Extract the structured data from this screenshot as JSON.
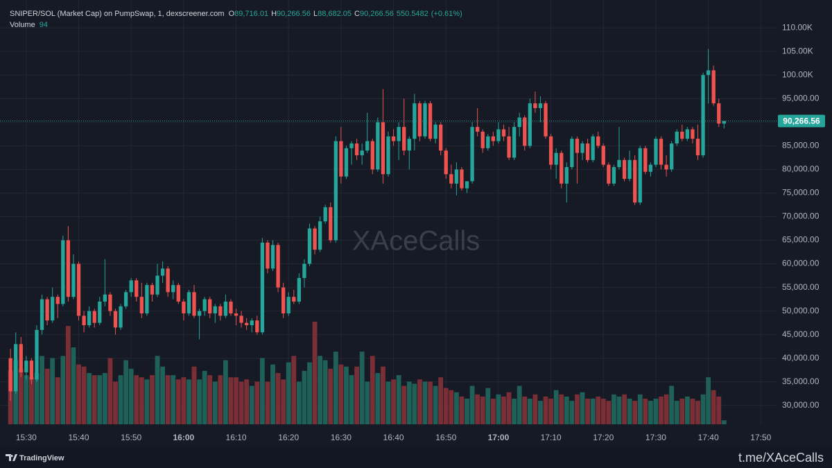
{
  "chart_data": {
    "type": "candlestick",
    "header": {
      "symbol": "SNIPER/SOL (Market Cap) on PumpSwap, 1, dexscreener.com",
      "o": "O",
      "open": "89,716.01",
      "h": "H",
      "high": "90,266.56",
      "l": "L",
      "low": "88,682.05",
      "c": "C",
      "close": "90,266.56",
      "change": "550.5482",
      "change_pct": "(+0.61%)",
      "volume_name": "Volume"
    },
    "watermark": "XAceCalls",
    "footer_brand": "TradingView",
    "footer_link": "t.me/XAceCalls",
    "up_color": "#26a69a",
    "down_color": "#ef5350",
    "volume_up_color": "#1f6158",
    "volume_down_color": "#7a2e36",
    "grid": true,
    "x": [
      "15:27",
      "15:28",
      "15:29",
      "15:30",
      "15:31",
      "15:32",
      "15:33",
      "15:34",
      "15:35",
      "15:36",
      "15:37",
      "15:38",
      "15:39",
      "15:40",
      "15:41",
      "15:42",
      "15:43",
      "15:44",
      "15:45",
      "15:46",
      "15:47",
      "15:48",
      "15:49",
      "15:50",
      "15:51",
      "15:52",
      "15:53",
      "15:54",
      "15:55",
      "15:56",
      "15:57",
      "15:58",
      "15:59",
      "16:00",
      "16:01",
      "16:02",
      "16:03",
      "16:04",
      "16:05",
      "16:06",
      "16:07",
      "16:08",
      "16:09",
      "16:10",
      "16:11",
      "16:12",
      "16:13",
      "16:14",
      "16:15",
      "16:16",
      "16:17",
      "16:18",
      "16:19",
      "16:20",
      "16:21",
      "16:22",
      "16:23",
      "16:24",
      "16:25",
      "16:26",
      "16:27",
      "16:28",
      "16:29",
      "16:30",
      "16:31",
      "16:32",
      "16:33",
      "16:34",
      "16:35",
      "16:36",
      "16:37",
      "16:38",
      "16:39",
      "16:40",
      "16:41",
      "16:42",
      "16:43",
      "16:44",
      "16:45",
      "16:46",
      "16:47",
      "16:48",
      "16:49",
      "16:50",
      "16:51",
      "16:52",
      "16:53",
      "16:54",
      "16:55",
      "16:56",
      "16:57",
      "16:58",
      "16:59",
      "17:00",
      "17:01",
      "17:02",
      "17:03",
      "17:04",
      "17:05",
      "17:06",
      "17:07",
      "17:08",
      "17:09",
      "17:10",
      "17:11",
      "17:12",
      "17:13",
      "17:14",
      "17:15",
      "17:16",
      "17:17",
      "17:18",
      "17:19",
      "17:20",
      "17:21",
      "17:22",
      "17:23",
      "17:24",
      "17:25",
      "17:26",
      "17:27",
      "17:28",
      "17:29",
      "17:30",
      "17:31",
      "17:32",
      "17:33",
      "17:34",
      "17:35",
      "17:36",
      "17:37",
      "17:38",
      "17:39",
      "17:40",
      "17:41",
      "17:42",
      "17:43"
    ],
    "ohlc": [
      [
        40000,
        42000,
        31000,
        33000
      ],
      [
        33000,
        45500,
        32500,
        43000
      ],
      [
        43000,
        44500,
        36000,
        37000
      ],
      [
        37000,
        40500,
        35500,
        39500
      ],
      [
        39500,
        40000,
        34500,
        35500
      ],
      [
        35500,
        47000,
        35000,
        46000
      ],
      [
        46000,
        53500,
        45000,
        52500
      ],
      [
        52500,
        53000,
        47000,
        48000
      ],
      [
        48000,
        55000,
        47500,
        53000
      ],
      [
        53000,
        53500,
        48500,
        51500
      ],
      [
        51500,
        66000,
        51000,
        65000
      ],
      [
        65000,
        68000,
        52000,
        53000
      ],
      [
        53000,
        62000,
        52500,
        60000
      ],
      [
        60000,
        60500,
        48000,
        49000
      ],
      [
        49000,
        50000,
        45500,
        47000
      ],
      [
        47000,
        51000,
        46500,
        50000
      ],
      [
        50000,
        50500,
        46500,
        47500
      ],
      [
        47500,
        53000,
        47000,
        52000
      ],
      [
        52000,
        61000,
        51000,
        53500
      ],
      [
        53500,
        54000,
        49000,
        50000
      ],
      [
        50000,
        50500,
        45000,
        46500
      ],
      [
        46500,
        51500,
        46000,
        51000
      ],
      [
        51000,
        54500,
        50500,
        54000
      ],
      [
        54000,
        57000,
        53000,
        56500
      ],
      [
        56500,
        57000,
        52000,
        53000
      ],
      [
        53000,
        56000,
        48500,
        49500
      ],
      [
        49500,
        56000,
        49000,
        55500
      ],
      [
        55500,
        56000,
        52000,
        53500
      ],
      [
        53500,
        60000,
        53000,
        57500
      ],
      [
        57500,
        60500,
        56000,
        59000
      ],
      [
        59000,
        59500,
        53000,
        54000
      ],
      [
        54000,
        56500,
        52500,
        55500
      ],
      [
        55500,
        56000,
        51500,
        52000
      ],
      [
        52000,
        52500,
        48000,
        49500
      ],
      [
        49500,
        54500,
        49000,
        54000
      ],
      [
        54000,
        55500,
        48500,
        49000
      ],
      [
        49000,
        50500,
        44000,
        50000
      ],
      [
        50000,
        53000,
        49000,
        52500
      ],
      [
        52500,
        53000,
        48500,
        49500
      ],
      [
        49500,
        51500,
        47500,
        51000
      ],
      [
        51000,
        51500,
        48000,
        49000
      ],
      [
        49000,
        53500,
        48500,
        52000
      ],
      [
        52000,
        52500,
        49000,
        49500
      ],
      [
        49500,
        50500,
        47000,
        49000
      ],
      [
        49000,
        50000,
        46500,
        47500
      ],
      [
        47500,
        48500,
        46000,
        47000
      ],
      [
        47000,
        48500,
        45500,
        48000
      ],
      [
        48000,
        49000,
        45000,
        45500
      ],
      [
        45500,
        65500,
        45000,
        64500
      ],
      [
        64500,
        65000,
        58000,
        59000
      ],
      [
        59000,
        65000,
        58500,
        64000
      ],
      [
        64000,
        64500,
        54000,
        55000
      ],
      [
        55000,
        56000,
        48500,
        49500
      ],
      [
        49500,
        54000,
        49000,
        53000
      ],
      [
        53000,
        54500,
        51500,
        52000
      ],
      [
        52000,
        58000,
        51500,
        57000
      ],
      [
        57000,
        61000,
        55000,
        60000
      ],
      [
        60000,
        68500,
        59500,
        67500
      ],
      [
        67500,
        68000,
        62000,
        63000
      ],
      [
        63000,
        70000,
        62500,
        69000
      ],
      [
        69000,
        72500,
        68500,
        72000
      ],
      [
        72000,
        73000,
        64500,
        65000
      ],
      [
        65000,
        87000,
        64500,
        86000
      ],
      [
        86000,
        89000,
        77000,
        78500
      ],
      [
        78500,
        85000,
        78000,
        84500
      ],
      [
        84500,
        86000,
        81000,
        85500
      ],
      [
        85500,
        86500,
        82000,
        83000
      ],
      [
        83000,
        85500,
        81000,
        84000
      ],
      [
        84000,
        92000,
        83500,
        86000
      ],
      [
        86000,
        86500,
        79000,
        80000
      ],
      [
        80000,
        91000,
        79500,
        90000
      ],
      [
        90000,
        97000,
        77000,
        79000
      ],
      [
        79000,
        88000,
        78500,
        87000
      ],
      [
        87000,
        88500,
        85000,
        86000
      ],
      [
        86000,
        90000,
        82000,
        89000
      ],
      [
        89000,
        95000,
        83000,
        84000
      ],
      [
        84000,
        87000,
        80000,
        86500
      ],
      [
        86500,
        96000,
        84000,
        94000
      ],
      [
        94000,
        94500,
        86000,
        87000
      ],
      [
        87000,
        94500,
        86500,
        94000
      ],
      [
        94000,
        94500,
        86000,
        86500
      ],
      [
        86500,
        90000,
        85500,
        89500
      ],
      [
        89500,
        90000,
        83000,
        84000
      ],
      [
        84000,
        84500,
        78000,
        79000
      ],
      [
        79000,
        81000,
        76000,
        77000
      ],
      [
        77000,
        81500,
        74500,
        80000
      ],
      [
        80000,
        80500,
        75500,
        76000
      ],
      [
        76000,
        77500,
        75000,
        77500
      ],
      [
        77500,
        90000,
        77000,
        89000
      ],
      [
        89000,
        93000,
        87000,
        88000
      ],
      [
        88000,
        88500,
        83500,
        84500
      ],
      [
        84500,
        87500,
        84000,
        87000
      ],
      [
        87000,
        88000,
        85000,
        86000
      ],
      [
        86000,
        90000,
        85500,
        88500
      ],
      [
        88500,
        89500,
        86000,
        87000
      ],
      [
        87000,
        89000,
        82000,
        82500
      ],
      [
        82500,
        90000,
        82000,
        89000
      ],
      [
        89000,
        92000,
        87000,
        91000
      ],
      [
        91000,
        91500,
        84000,
        85000
      ],
      [
        85000,
        95000,
        84500,
        94000
      ],
      [
        94000,
        96500,
        92000,
        93000
      ],
      [
        93000,
        95500,
        90000,
        94000
      ],
      [
        94000,
        94500,
        86500,
        87000
      ],
      [
        87000,
        87500,
        80000,
        81000
      ],
      [
        81000,
        84500,
        78000,
        83500
      ],
      [
        83500,
        84000,
        76000,
        77000
      ],
      [
        77000,
        81500,
        73000,
        80500
      ],
      [
        80500,
        87000,
        80000,
        86500
      ],
      [
        86500,
        87000,
        77000,
        83500
      ],
      [
        83500,
        86000,
        82000,
        85500
      ],
      [
        85500,
        86500,
        81500,
        82000
      ],
      [
        82000,
        87500,
        81500,
        87000
      ],
      [
        87000,
        88000,
        84500,
        85000
      ],
      [
        85000,
        85500,
        80500,
        81000
      ],
      [
        81000,
        81500,
        76500,
        77000
      ],
      [
        77000,
        81000,
        76500,
        80500
      ],
      [
        80500,
        89000,
        80000,
        82000
      ],
      [
        82000,
        82500,
        77500,
        78000
      ],
      [
        78000,
        84000,
        77500,
        82000
      ],
      [
        82000,
        83000,
        72500,
        73000
      ],
      [
        73000,
        85000,
        72500,
        84500
      ],
      [
        84500,
        85000,
        79000,
        79500
      ],
      [
        79500,
        81500,
        78500,
        81000
      ],
      [
        81000,
        87000,
        80500,
        86500
      ],
      [
        86500,
        87000,
        80000,
        81000
      ],
      [
        81000,
        83000,
        78500,
        80000
      ],
      [
        80000,
        86000,
        79500,
        85500
      ],
      [
        85500,
        88500,
        85000,
        88000
      ],
      [
        88000,
        89500,
        86000,
        86500
      ],
      [
        86500,
        89000,
        86000,
        88500
      ],
      [
        88500,
        89000,
        85500,
        86500
      ],
      [
        86500,
        89500,
        82000,
        83000
      ],
      [
        83000,
        100500,
        82500,
        100000
      ],
      [
        100000,
        105500,
        94000,
        101000
      ],
      [
        101000,
        102000,
        93500,
        94000
      ],
      [
        94000,
        95000,
        89000,
        89716.01
      ],
      [
        89716.01,
        90266.56,
        88682.05,
        90266.56
      ]
    ],
    "volume": [
      1250,
      1500,
      1300,
      1150,
      1100,
      1200,
      1600,
      1300,
      1550,
      1100,
      1600,
      2300,
      1800,
      1400,
      1350,
      1200,
      1150,
      1150,
      1200,
      1550,
      1000,
      1150,
      1500,
      1300,
      1150,
      1100,
      1050,
      1150,
      1600,
      1350,
      1150,
      1150,
      1050,
      1100,
      1050,
      1350,
      1050,
      1250,
      1150,
      1000,
      1150,
      1500,
      1100,
      1100,
      1000,
      1050,
      900,
      1000,
      1550,
      1000,
      1400,
      1200,
      1050,
      1450,
      1600,
      1000,
      1250,
      1450,
      2400,
      1600,
      1500,
      1300,
      1700,
      1400,
      1350,
      1150,
      1350,
      1700,
      1000,
      1600,
      1200,
      1350,
      1000,
      1050,
      1150,
      900,
      1000,
      950,
      1050,
      1000,
      1000,
      900,
      1100,
      850,
      800,
      750,
      650,
      600,
      900,
      700,
      650,
      850,
      600,
      700,
      650,
      750,
      600,
      900,
      650,
      600,
      700,
      550,
      650,
      600,
      800,
      700,
      650,
      550,
      700,
      750,
      600,
      600,
      650,
      600,
      550,
      700,
      650,
      700,
      600,
      550,
      700,
      600,
      550,
      600,
      650,
      700,
      900,
      550,
      600,
      650,
      600,
      550,
      700,
      1100,
      800,
      650,
      94
    ],
    "xlim": [
      "15:25",
      "17:53"
    ],
    "xticks": [
      "15:30",
      "15:40",
      "15:50",
      "16:00",
      "16:10",
      "16:20",
      "16:30",
      "16:40",
      "16:50",
      "17:00",
      "17:10",
      "17:20",
      "17:30",
      "17:40",
      "17:50"
    ],
    "ylim": [
      26000,
      115900
    ],
    "yticks": [
      {
        "value": 30000,
        "label": "30,000.00"
      },
      {
        "value": 35000,
        "label": "35,000.00"
      },
      {
        "value": 40000,
        "label": "40,000.00"
      },
      {
        "value": 45000,
        "label": "45,000.00"
      },
      {
        "value": 50000,
        "label": "50,000.00"
      },
      {
        "value": 55000,
        "label": "55,000.00"
      },
      {
        "value": 60000,
        "label": "60,000.00"
      },
      {
        "value": 65000,
        "label": "65,000.00"
      },
      {
        "value": 70000,
        "label": "70,000.00"
      },
      {
        "value": 75000,
        "label": "75,000.00"
      },
      {
        "value": 80000,
        "label": "80,000.00"
      },
      {
        "value": 85000,
        "label": "85,000.00"
      },
      {
        "value": 90000,
        "label": "90,000.00"
      },
      {
        "value": 95000,
        "label": "95,000.00"
      },
      {
        "value": 100000,
        "label": "100.00K"
      },
      {
        "value": 105000,
        "label": "105.00K"
      },
      {
        "value": 110000,
        "label": "110.00K"
      }
    ],
    "vlim": [
      0,
      2400
    ],
    "last_price": {
      "value": 90266.56,
      "label": "90,266.56"
    }
  }
}
